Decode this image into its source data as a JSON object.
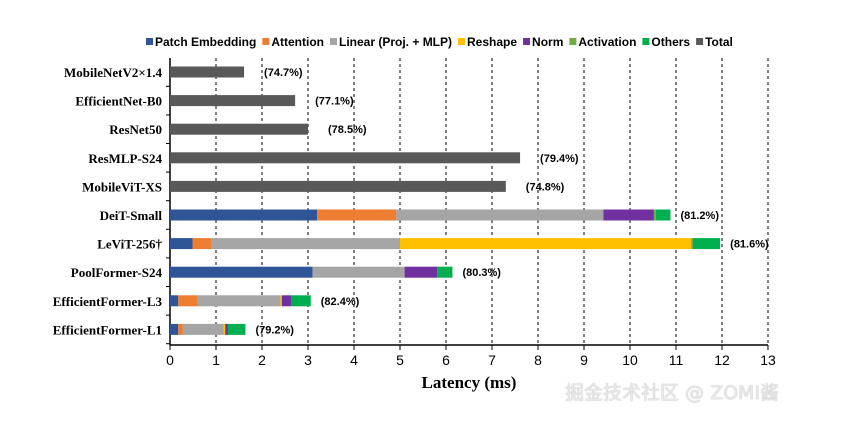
{
  "chart_data": {
    "type": "bar",
    "orientation": "horizontal",
    "stacked": true,
    "xlabel": "Latency (ms)",
    "xlim": [
      0,
      13
    ],
    "xticks": [
      "0",
      "1",
      "2",
      "3",
      "4",
      "5",
      "6",
      "7",
      "8",
      "9",
      "10",
      "11",
      "12",
      "13"
    ],
    "grid": "vertical dashed",
    "legend_position": "top",
    "legend": [
      {
        "name": "Patch Embedding",
        "color": "#2f5597"
      },
      {
        "name": "Attention",
        "color": "#ed7d31"
      },
      {
        "name": "Linear (Proj. + MLP)",
        "color": "#a5a5a5"
      },
      {
        "name": "Reshape",
        "color": "#ffc000"
      },
      {
        "name": "Norm",
        "color": "#7030a0"
      },
      {
        "name": "Activation",
        "color": "#70ad47"
      },
      {
        "name": "Others",
        "color": "#00b050"
      },
      {
        "name": "Total",
        "color": "#595959"
      }
    ],
    "categories": [
      "MobileNetV2×1.4",
      "EfficientNet-B0",
      "ResNet50",
      "ResMLP-S24",
      "MobileViT-XS",
      "DeiT-Small",
      "LeViT-256†",
      "PoolFormer-S24",
      "EfficientFormer-L3",
      "EfficientFormer-L1"
    ],
    "annotations": [
      "(74.7%)",
      "(77.1%)",
      "(78.5%)",
      "(79.4%)",
      "(74.8%)",
      "(81.2%)",
      "(81.6%)",
      "(80.3%)",
      "(82.4%)",
      "(79.2%)"
    ],
    "rows": [
      {
        "Total": 1.61
      },
      {
        "Total": 2.72
      },
      {
        "Total": 3.0
      },
      {
        "Total": 7.61
      },
      {
        "Total": 7.3
      },
      {
        "Patch Embedding": 3.2,
        "Attention": 1.72,
        "Linear (Proj. + MLP)": 4.5,
        "Reshape": 0,
        "Norm": 1.1,
        "Activation": 0.04,
        "Others": 0.32
      },
      {
        "Patch Embedding": 0.49,
        "Attention": 0.41,
        "Linear (Proj. + MLP)": 4.1,
        "Reshape": 6.33,
        "Norm": 0,
        "Activation": 0.04,
        "Others": 0.59
      },
      {
        "Patch Embedding": 3.1,
        "Attention": 0,
        "Linear (Proj. + MLP)": 2.0,
        "Reshape": 0,
        "Norm": 0.71,
        "Activation": 0,
        "Others": 0.33
      },
      {
        "Patch Embedding": 0.18,
        "Attention": 0.42,
        "Linear (Proj. + MLP)": 1.8,
        "Reshape": 0.03,
        "Norm": 0.2,
        "Activation": 0,
        "Others": 0.43
      },
      {
        "Patch Embedding": 0.18,
        "Attention": 0.1,
        "Linear (Proj. + MLP)": 0.89,
        "Reshape": 0.03,
        "Norm": 0.06,
        "Activation": 0,
        "Others": 0.38
      }
    ]
  },
  "watermark": "掘金技术社区 @ ZOMI酱"
}
